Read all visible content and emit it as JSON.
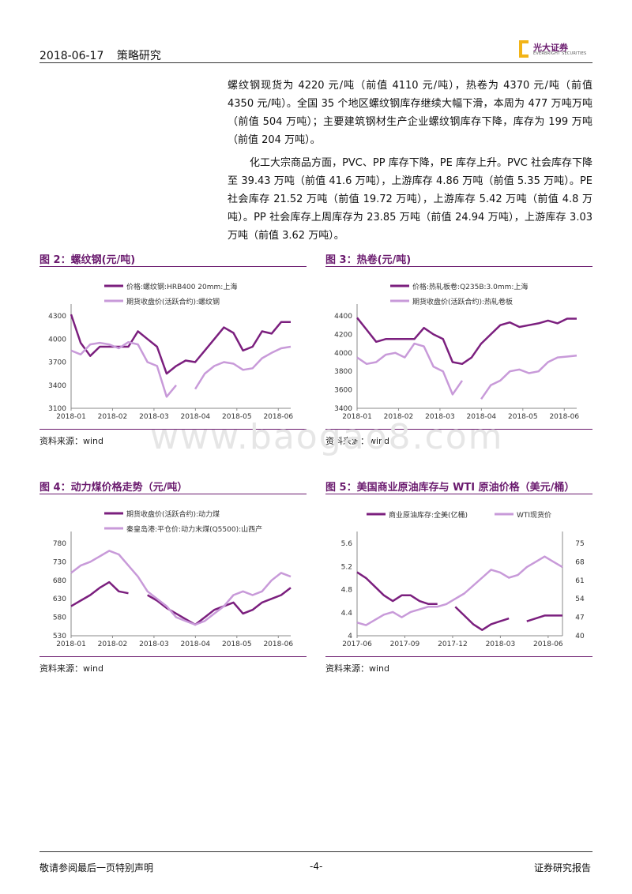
{
  "header": {
    "date": "2018-06-17",
    "section": "策略研究"
  },
  "logo": {
    "name": "光大证券",
    "sub": "EVERBRIGHT SECURITIES"
  },
  "paragraphs": [
    "螺纹钢现货为 4220 元/吨（前值 4110 元/吨），热卷为 4370 元/吨（前值 4350 元/吨）。全国 35 个地区螺纹钢库存继续大幅下滑，本周为 477 万吨万吨（前值 504 万吨）；主要建筑钢材生产企业螺纹钢库存下降，库存为 199 万吨（前值 204 万吨）。",
    "化工大宗商品方面，PVC、PP 库存下降，PE 库存上升。PVC 社会库存下降至 39.43 万吨（前值 41.6 万吨），上游库存 4.86 万吨（前值 5.35 万吨）。PE 社会库存 21.52 万吨（前值 19.72 万吨），上游库存 5.42 万吨（前值 4.8 万吨）。PP 社会库存上周库存为 23.85 万吨（前值 24.94 万吨），上游库存 3.03 万吨（前值 3.62 万吨）。"
  ],
  "watermark": "www.baogao8.com",
  "footer": {
    "left": "敬请参阅最后一页特别声明",
    "page": "-4-",
    "right": "证券研究报告"
  },
  "colors": {
    "dark": "#7b1f7e",
    "light": "#c89ad9",
    "accent": "#6a1a6e"
  },
  "chart_data": [
    {
      "id": "fig2",
      "type": "line",
      "title": "图 2：螺纹钢(元/吨)",
      "source": "资料来源：wind",
      "x_ticks": [
        "2018-01",
        "2018-02",
        "2018-03",
        "2018-04",
        "2018-05",
        "2018-06"
      ],
      "ylim": [
        3100,
        4300
      ],
      "y_ticks": [
        3100,
        3400,
        3700,
        4000,
        4300
      ],
      "n": 24,
      "series": [
        {
          "name": "价格:螺纹钢:HRB400 20mm:上海",
          "color": "dark",
          "values": [
            4320,
            3950,
            3780,
            3900,
            3900,
            3900,
            3900,
            4100,
            4000,
            3900,
            3550,
            3650,
            3720,
            3700,
            3850,
            4000,
            4150,
            4080,
            3850,
            3900,
            4100,
            4070,
            4220,
            4220
          ]
        },
        {
          "name": "期货收盘价(活跃合约):螺纹钢",
          "color": "light",
          "values": [
            3850,
            3800,
            3930,
            3950,
            3930,
            3880,
            3960,
            3930,
            3700,
            3650,
            3250,
            3400,
            null,
            3350,
            3550,
            3650,
            3700,
            3680,
            3600,
            3620,
            3750,
            3820,
            3880,
            3900
          ]
        }
      ]
    },
    {
      "id": "fig3",
      "type": "line",
      "title": "图 3：热卷(元/吨)",
      "source": "资料来源：wind",
      "x_ticks": [
        "2018-01",
        "2018-02",
        "2018-03",
        "2018-04",
        "2018-05",
        "2018-06"
      ],
      "ylim": [
        3400,
        4400
      ],
      "y_ticks": [
        3400,
        3600,
        3800,
        4000,
        4200,
        4400
      ],
      "n": 24,
      "series": [
        {
          "name": "价格:热轧板卷:Q235B:3.0mm:上海",
          "color": "dark",
          "values": [
            4380,
            4250,
            4120,
            4150,
            4150,
            4150,
            4150,
            4270,
            4200,
            4150,
            3900,
            3880,
            3950,
            4100,
            4200,
            4300,
            4330,
            4280,
            4300,
            4320,
            4350,
            4320,
            4370,
            4370
          ]
        },
        {
          "name": "期货收盘价(活跃合约):热轧卷板",
          "color": "light",
          "values": [
            3950,
            3880,
            3900,
            3980,
            4000,
            3950,
            4100,
            4070,
            3850,
            3800,
            3550,
            3700,
            null,
            3500,
            3650,
            3700,
            3800,
            3820,
            3780,
            3800,
            3900,
            3950,
            3960,
            3970
          ]
        }
      ]
    },
    {
      "id": "fig4",
      "type": "line",
      "title": "图 4：动力煤价格走势（元/吨）",
      "source": "资料来源：wind",
      "x_ticks": [
        "2018-01",
        "2018-02",
        "2018-03",
        "2018-04",
        "2018-05",
        "2018-06"
      ],
      "ylim": [
        530,
        780
      ],
      "y_ticks": [
        530,
        580,
        630,
        680,
        730,
        780
      ],
      "n": 24,
      "series": [
        {
          "name": "期货收盘价(活跃合约):动力煤",
          "color": "dark",
          "values": [
            610,
            625,
            640,
            660,
            675,
            650,
            645,
            null,
            640,
            625,
            605,
            590,
            575,
            560,
            580,
            600,
            610,
            620,
            590,
            600,
            620,
            630,
            640,
            660
          ]
        },
        {
          "name": "秦皇岛港:平仓价:动力末煤(Q5500):山西产",
          "color": "light",
          "values": [
            700,
            720,
            730,
            745,
            760,
            750,
            720,
            690,
            650,
            630,
            610,
            580,
            570,
            560,
            570,
            590,
            610,
            640,
            650,
            640,
            650,
            680,
            700,
            690
          ]
        }
      ]
    },
    {
      "id": "fig5",
      "type": "line",
      "title": "图 5：美国商业原油库存与 WTI 原油价格（美元/桶）",
      "source": "资料来源：wind",
      "x_ticks": [
        "2017-06",
        "2017-09",
        "2017-12",
        "2018-03",
        "2018-06"
      ],
      "ylim": [
        4,
        5.6
      ],
      "y_ticks": [
        4,
        4.4,
        4.8,
        5.2,
        5.6
      ],
      "y2lim": [
        40,
        75
      ],
      "y2_ticks": [
        40,
        47,
        54,
        61,
        68,
        75
      ],
      "n": 24,
      "series": [
        {
          "name": "商业原油库存:全美(亿桶)",
          "color": "dark",
          "axis": "left",
          "values": [
            5.1,
            5.0,
            4.85,
            4.7,
            4.6,
            4.7,
            4.7,
            4.6,
            4.55,
            4.55,
            null,
            4.5,
            4.35,
            4.2,
            4.1,
            4.2,
            4.25,
            4.3,
            null,
            4.25,
            4.3,
            4.35,
            4.35,
            4.35
          ]
        },
        {
          "name": "WTI现货价",
          "color": "light",
          "axis": "right",
          "values": [
            45,
            44,
            46,
            48,
            49,
            47,
            49,
            50,
            51,
            51,
            52,
            54,
            56,
            59,
            62,
            65,
            64,
            62,
            63,
            66,
            68,
            70,
            68,
            66
          ]
        }
      ]
    }
  ]
}
